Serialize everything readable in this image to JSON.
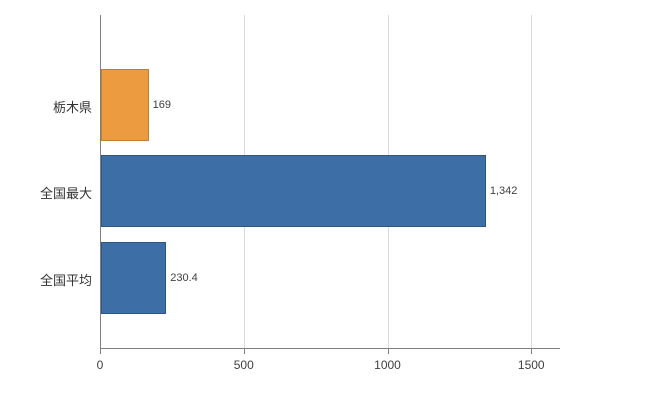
{
  "chart_data": {
    "type": "bar",
    "orientation": "horizontal",
    "title": "",
    "xlabel": "",
    "ylabel": "",
    "categories": [
      "栃木県",
      "全国最大",
      "全国平均"
    ],
    "values": [
      169,
      1342,
      230.4
    ],
    "value_labels": [
      "169",
      "1,342",
      "230.4"
    ],
    "bar_colors": [
      "#ED9B40",
      "#3D6EA5",
      "#3D6EA5"
    ],
    "bar_border_colors": [
      "#C07E2F",
      "#2F567E",
      "#2F567E"
    ],
    "xlim": [
      0,
      1600
    ],
    "x_tick_values": [
      0,
      500,
      1000,
      1500
    ],
    "x_tick_labels": [
      "0",
      "500",
      "1000",
      "1500"
    ],
    "grid": true,
    "legend": false,
    "colors": {
      "grid": "#D9D9D9",
      "axis": "#808080",
      "category_text": "#333333",
      "value_text": "#404040",
      "tick_text": "#404040",
      "background": "#FFFFFF"
    }
  }
}
